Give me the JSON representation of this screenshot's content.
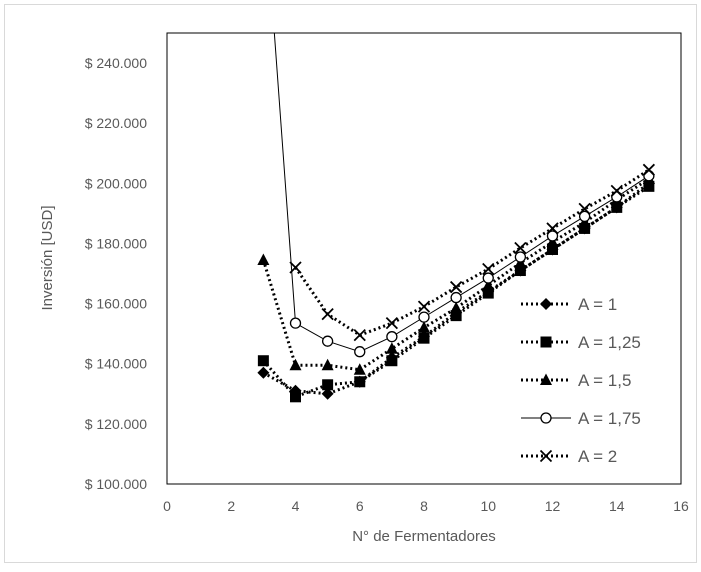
{
  "chart_data": {
    "type": "line",
    "title": "",
    "xlabel": "N° de Fermentadores",
    "ylabel": "Inversión [USD]",
    "xlim": [
      0,
      16
    ],
    "ylim": [
      100000,
      250000
    ],
    "x_ticks": [
      "0",
      "2",
      "4",
      "6",
      "8",
      "10",
      "12",
      "14",
      "16"
    ],
    "y_ticks": [
      "$ 100.000",
      "$ 120.000",
      "$ 140.000",
      "$ 160.000",
      "$ 180.000",
      "$ 200.000",
      "$ 220.000",
      "$ 240.000"
    ],
    "x_tick_values": [
      0,
      2,
      4,
      6,
      8,
      10,
      12,
      14,
      16
    ],
    "y_tick_values": [
      100000,
      120000,
      140000,
      160000,
      180000,
      200000,
      220000,
      240000
    ],
    "grid": false,
    "legend_position": "right",
    "series": [
      {
        "name": "A = 1",
        "marker": "diamond",
        "line": "dotted",
        "x": [
          3,
          4,
          5,
          6,
          7,
          8,
          9,
          10,
          11,
          12,
          13,
          14,
          15
        ],
        "values": [
          137000,
          131000,
          130000,
          134000,
          142000,
          149000,
          157000,
          164000,
          171000,
          178000,
          185000,
          192000,
          200000
        ]
      },
      {
        "name": "A = 1,25",
        "marker": "square",
        "line": "dotted",
        "x": [
          3,
          4,
          5,
          6,
          7,
          8,
          9,
          10,
          11,
          12,
          13,
          14,
          15
        ],
        "values": [
          141000,
          129000,
          133000,
          134000,
          141000,
          148500,
          156000,
          163500,
          171000,
          178000,
          185000,
          192000,
          199000
        ]
      },
      {
        "name": "A = 1,5",
        "marker": "triangle",
        "line": "dotted",
        "x": [
          3,
          4,
          5,
          6,
          7,
          8,
          9,
          10,
          11,
          12,
          13,
          14,
          15
        ],
        "values": [
          174500,
          139500,
          139500,
          138000,
          145000,
          152000,
          158500,
          166000,
          173500,
          180500,
          187000,
          194500,
          201500
        ]
      },
      {
        "name": "A = 1,75",
        "marker": "circle-open",
        "line": "solid",
        "x": [
          3,
          4,
          5,
          6,
          7,
          8,
          9,
          10,
          11,
          12,
          13,
          14,
          15
        ],
        "values": [
          300000,
          153500,
          147500,
          144000,
          149000,
          155500,
          162000,
          168500,
          175500,
          182500,
          189000,
          195500,
          202500
        ]
      },
      {
        "name": "A = 2",
        "marker": "x",
        "line": "dotted",
        "x": [
          4,
          5,
          6,
          7,
          8,
          9,
          10,
          11,
          12,
          13,
          14,
          15
        ],
        "values": [
          172000,
          156500,
          149500,
          153500,
          159000,
          165500,
          171500,
          178500,
          185000,
          191500,
          197500,
          204500
        ]
      }
    ]
  }
}
